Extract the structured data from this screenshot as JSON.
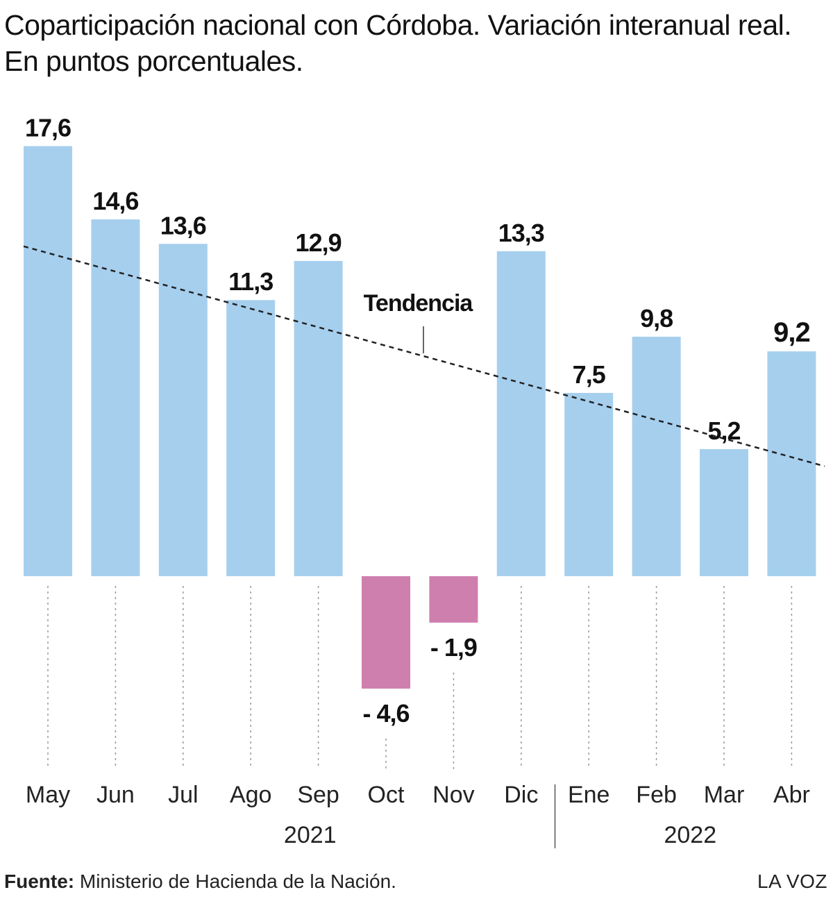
{
  "title": "Coparticipación nacional con Córdoba. Variación interanual real. En puntos porcentuales.",
  "chart_data": {
    "type": "bar",
    "categories": [
      "May",
      "Jun",
      "Jul",
      "Ago",
      "Sep",
      "Oct",
      "Nov",
      "Dic",
      "Ene",
      "Feb",
      "Mar",
      "Abr"
    ],
    "values": [
      17.6,
      14.6,
      13.6,
      11.3,
      12.9,
      -4.6,
      -1.9,
      13.3,
      7.5,
      9.8,
      5.2,
      9.2
    ],
    "value_labels": [
      "17,6",
      "14,6",
      "13,6",
      "11,3",
      "12,9",
      "- 4,6",
      "- 1,9",
      "13,3",
      "7,5",
      "9,8",
      "5,2",
      "9,2"
    ],
    "year_groups": [
      {
        "label": "2021",
        "start": 0,
        "end": 7
      },
      {
        "label": "2022",
        "start": 8,
        "end": 11
      }
    ],
    "trend_label": "Tendencia",
    "trend": {
      "start_value": 13.5,
      "end_value": 4.5
    },
    "colors": {
      "positive": "#a6cfee",
      "negative": "#cf7fae",
      "trend": "#222222",
      "guide": "#999999"
    },
    "ylim": [
      -8,
      18
    ]
  },
  "footer": {
    "source_label": "Fuente:",
    "source_text": " Ministerio de Hacienda de la Nación.",
    "brand": "LA VOZ"
  }
}
